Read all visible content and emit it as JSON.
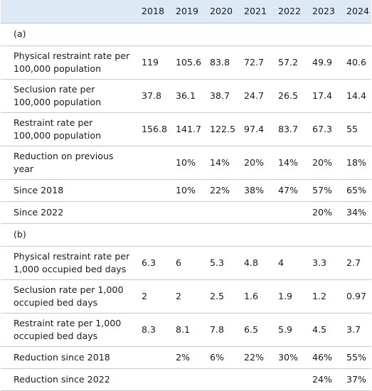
{
  "table": {
    "years": [
      "2018",
      "2019",
      "2020",
      "2021",
      "2022",
      "2023",
      "2024"
    ],
    "section_a": {
      "label": "(a)",
      "rows": [
        {
          "label": "Physical restraint rate per 100,000 population",
          "values": [
            "119",
            "105.6",
            "83.8",
            "72.7",
            "57.2",
            "49.9",
            "40.6"
          ]
        },
        {
          "label": "Seclusion rate per 100,000 population",
          "values": [
            "37.8",
            "36.1",
            "38.7",
            "24.7",
            "26.5",
            "17.4",
            "14.4"
          ]
        },
        {
          "label": "Restraint rate per 100,000 population",
          "values": [
            "156.8",
            "141.7",
            "122.5",
            "97.4",
            "83.7",
            "67.3",
            "55"
          ]
        },
        {
          "label": "Reduction on previous year",
          "values": [
            "",
            "10%",
            "14%",
            "20%",
            "14%",
            "20%",
            "18%"
          ]
        },
        {
          "label": "Since 2018",
          "values": [
            "",
            "10%",
            "22%",
            "38%",
            "47%",
            "57%",
            "65%"
          ]
        },
        {
          "label": "Since 2022",
          "values": [
            "",
            "",
            "",
            "",
            "",
            "20%",
            "34%"
          ]
        }
      ]
    },
    "section_b": {
      "label": "(b)",
      "rows": [
        {
          "label": "Physical restraint rate per 1,000 occupied bed days",
          "values": [
            "6.3",
            "6",
            "5.3",
            "4.8",
            "4",
            "3.3",
            "2.7"
          ]
        },
        {
          "label": "Seclusion rate per 1,000 occupied bed days",
          "values": [
            "2",
            "2",
            "2.5",
            "1.6",
            "1.9",
            "1.2",
            "0.97"
          ]
        },
        {
          "label": "Restraint rate per 1,000 occupied bed days",
          "values": [
            "8.3",
            "8.1",
            "7.8",
            "6.5",
            "5.9",
            "4.5",
            "3.7"
          ]
        },
        {
          "label": "Reduction since 2018",
          "values": [
            "",
            "2%",
            "6%",
            "22%",
            "30%",
            "46%",
            "55%"
          ]
        },
        {
          "label": "Reduction since 2022",
          "values": [
            "",
            "",
            "",
            "",
            "",
            "24%",
            "37%"
          ]
        }
      ]
    }
  }
}
